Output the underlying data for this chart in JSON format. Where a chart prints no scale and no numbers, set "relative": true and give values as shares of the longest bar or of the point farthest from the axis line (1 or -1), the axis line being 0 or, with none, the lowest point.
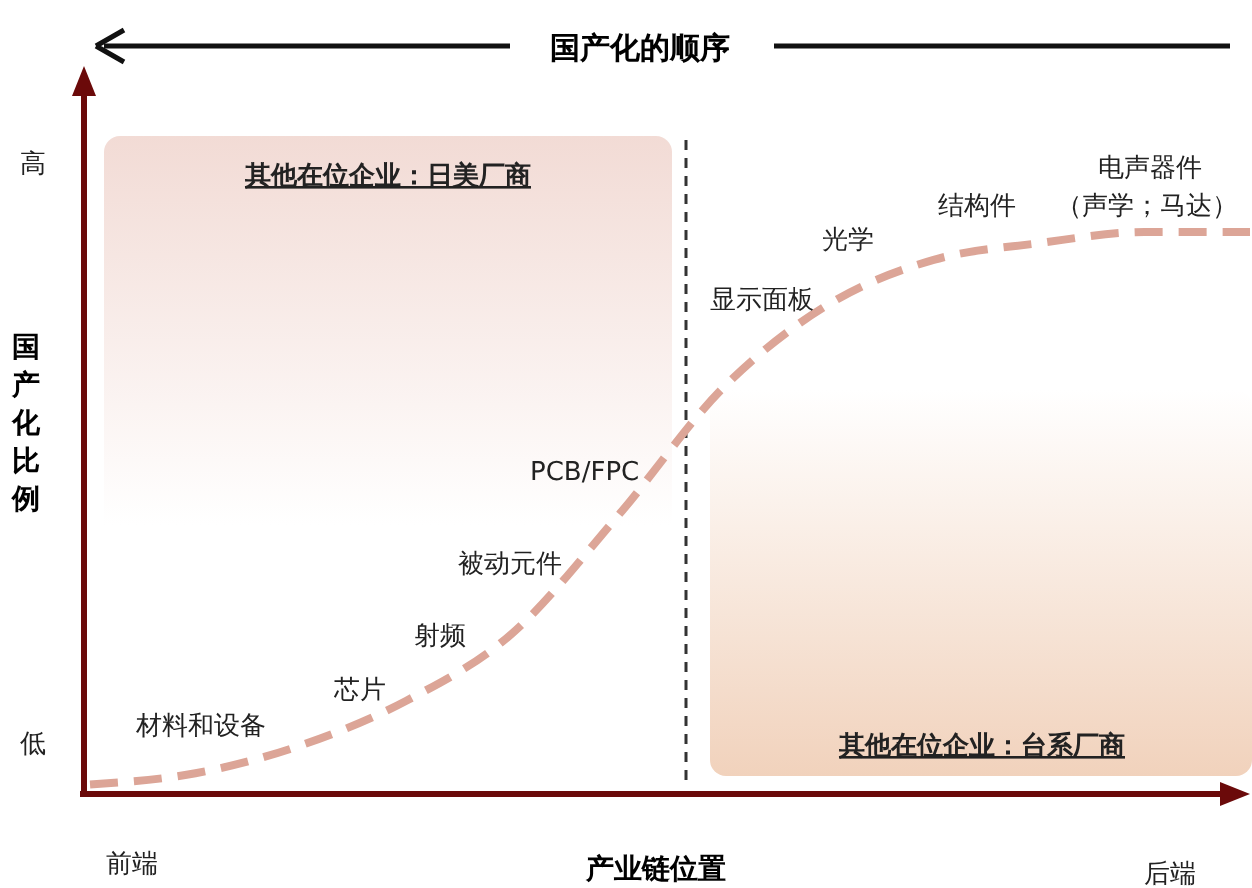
{
  "chart_data": {
    "type": "line",
    "relative": true,
    "title": "国产化的顺序",
    "xlabel": "产业链位置",
    "ylabel": "国产化比例",
    "categories": [
      null,
      null,
      null,
      null,
      null,
      null,
      null,
      null,
      null,
      null,
      null,
      null
    ],
    "series": [
      {
        "color": "#dca597",
        "values": [
          0.01,
          0.03,
          0.08,
          0.16,
          0.28,
          0.49,
          0.72,
          0.87,
          0.95,
          0.98,
          1,
          1
        ]
      }
    ],
    "line_style": "dashed",
    "marker": "none",
    "annotations": [
      "其他在位企业：日美厂商",
      "其他在位企业：台系厂商",
      "材料和设备",
      "芯片",
      "射频",
      "被动元件",
      "PCB/FPC",
      "显示面板",
      "光学",
      "结构件",
      "电声器件",
      "（声学；马达）",
      "高",
      "低",
      "前端",
      "后端"
    ]
  }
}
